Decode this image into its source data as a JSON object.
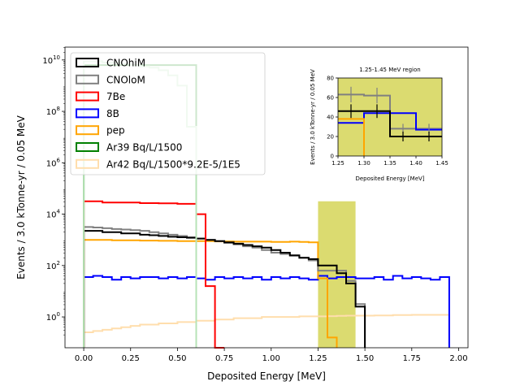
{
  "chart_data": {
    "type": "histogram-step",
    "xlabel": "Deposited Energy [MeV]",
    "ylabel": "Events / 3.0 kTonne-yr / 0.05 MeV",
    "yscale": "log",
    "xlim": [
      -0.1,
      2.05
    ],
    "ylim_log10": [
      -1.2,
      10.5
    ],
    "xticks": [
      0.0,
      0.25,
      0.5,
      0.75,
      1.0,
      1.25,
      1.5,
      1.75,
      2.0
    ],
    "xtick_labels": [
      "0.00",
      "0.25",
      "0.50",
      "0.75",
      "1.00",
      "1.25",
      "1.50",
      "1.75",
      "2.00"
    ],
    "yticks_exp": [
      0,
      2,
      4,
      6,
      8,
      10
    ],
    "bin_width": 0.05,
    "highlight_region": {
      "x0": 1.25,
      "x1": 1.45,
      "y_top": 4.5,
      "color": "#dbdb70"
    },
    "legend_position": "upper-left",
    "series": [
      {
        "name": "CNOhiM",
        "color": "#000000",
        "x0": 0.0,
        "log10_values": [
          3.35,
          3.35,
          3.3,
          3.3,
          3.25,
          3.25,
          3.2,
          3.18,
          3.15,
          3.12,
          3.1,
          3.08,
          3.05,
          3.0,
          2.95,
          2.9,
          2.85,
          2.8,
          2.75,
          2.7,
          2.6,
          2.5,
          2.4,
          2.3,
          2.25,
          2.0,
          2.0,
          1.7,
          1.3,
          0.4
        ]
      },
      {
        "name": "CNOloM",
        "color": "#808080",
        "x0": 0.0,
        "log10_values": [
          3.5,
          3.48,
          3.45,
          3.42,
          3.4,
          3.38,
          3.35,
          3.3,
          3.25,
          3.2,
          3.15,
          3.1,
          3.05,
          3.0,
          2.95,
          2.88,
          2.82,
          2.75,
          2.7,
          2.6,
          2.5,
          2.45,
          2.38,
          2.3,
          2.2,
          1.8,
          1.8,
          1.8,
          1.4,
          0.5
        ]
      },
      {
        "name": "7Be",
        "color": "#ff0000",
        "x0": 0.0,
        "log10_values": [
          4.5,
          4.5,
          4.45,
          4.45,
          4.45,
          4.45,
          4.43,
          4.43,
          4.42,
          4.42,
          4.4,
          4.4,
          4.0,
          1.2,
          -2.0
        ]
      },
      {
        "name": "8B",
        "color": "#0000ff",
        "x0": 0.0,
        "log10_values": [
          1.55,
          1.6,
          1.55,
          1.45,
          1.55,
          1.5,
          1.55,
          1.55,
          1.5,
          1.55,
          1.5,
          1.55,
          1.5,
          1.45,
          1.55,
          1.5,
          1.55,
          1.5,
          1.55,
          1.45,
          1.55,
          1.5,
          1.55,
          1.5,
          1.45,
          1.6,
          1.5,
          1.55,
          1.55,
          1.5,
          1.5,
          1.55,
          1.45,
          1.6,
          1.5,
          1.55,
          1.5,
          1.45,
          1.55
        ]
      },
      {
        "name": "pep",
        "color": "#ffa500",
        "x0": 0.0,
        "log10_values": [
          3.0,
          3.0,
          3.0,
          2.98,
          2.98,
          2.98,
          2.97,
          2.97,
          2.96,
          2.96,
          2.95,
          2.95,
          2.95,
          2.95,
          2.94,
          2.94,
          2.93,
          2.93,
          2.93,
          2.93,
          2.92,
          2.92,
          2.93,
          2.92,
          2.9,
          1.5,
          -0.8
        ]
      },
      {
        "name": "Ar39 Bq/L/1500",
        "color": "#008000",
        "x0": 0.0,
        "log10_values": [
          9.8,
          9.8,
          9.8,
          9.8,
          9.8,
          9.8,
          9.8,
          9.8,
          9.8,
          9.8,
          9.8,
          9.8
        ]
      },
      {
        "name": "Ar42 Bq/L/1500*9.2E-5/1E5",
        "color": "#ffdead",
        "x0": 0.0,
        "log10_values": [
          -0.6,
          -0.55,
          -0.5,
          -0.45,
          -0.4,
          -0.35,
          -0.3,
          -0.3,
          -0.25,
          -0.25,
          -0.2,
          -0.2,
          -0.15,
          -0.15,
          -0.1,
          -0.1,
          -0.05,
          -0.05,
          -0.05,
          0.0,
          0.0,
          0.0,
          0.0,
          0.02,
          0.02,
          0.02,
          0.03,
          0.04,
          0.05,
          0.05,
          0.05,
          0.06,
          0.06,
          0.07,
          0.07,
          0.08,
          0.08,
          0.08,
          0.08
        ]
      }
    ],
    "inset": {
      "title": "1.25-1.45 MeV region",
      "xlabel": "Deposited Energy [MeV]",
      "ylabel": "Events / 3.0 kTonne-yr / 0.05 MeV",
      "xlim": [
        1.25,
        1.45
      ],
      "ylim": [
        0,
        80
      ],
      "xticks": [
        1.25,
        1.3,
        1.35,
        1.4,
        1.45
      ],
      "xtick_labels": [
        "1.25",
        "1.30",
        "1.35",
        "1.40",
        "1.45"
      ],
      "yticks": [
        0,
        20,
        40,
        60,
        80
      ],
      "ytick_labels": [
        "0",
        "20",
        "40",
        "60",
        "80"
      ],
      "background": "#dbdb70",
      "series": [
        {
          "name": "CNOloM",
          "color": "#808080",
          "edges": [
            1.25,
            1.3,
            1.35,
            1.4,
            1.45
          ],
          "values": [
            63,
            62,
            28,
            28
          ]
        },
        {
          "name": "8B",
          "color": "#0000ff",
          "edges": [
            1.25,
            1.3,
            1.35,
            1.4,
            1.45
          ],
          "values": [
            34,
            44,
            44,
            27
          ]
        },
        {
          "name": "pep",
          "color": "#ffa500",
          "edges": [
            1.25,
            1.3
          ],
          "values": [
            38
          ]
        },
        {
          "name": "CNOhiM",
          "color": "#000000",
          "edges": [
            1.25,
            1.3,
            1.35,
            1.4,
            1.45
          ],
          "values": [
            46,
            46,
            20,
            20
          ]
        }
      ],
      "errorbars": [
        {
          "name": "CNOloM",
          "color": "#808080",
          "x": [
            1.275,
            1.325,
            1.375,
            1.425
          ],
          "y": [
            63,
            62,
            28,
            28
          ],
          "err": [
            8,
            8,
            5,
            5
          ]
        },
        {
          "name": "CNOhiM",
          "color": "#000000",
          "x": [
            1.275,
            1.325,
            1.375,
            1.425
          ],
          "y": [
            46,
            46,
            20,
            20
          ],
          "err": [
            7,
            7,
            5,
            5
          ]
        }
      ]
    }
  }
}
